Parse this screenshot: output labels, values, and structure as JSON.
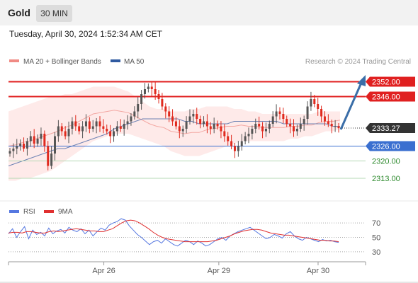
{
  "header": {
    "symbol": "Gold",
    "timeframe": "30 MIN"
  },
  "timestamp": "Tuesday, April 30, 2024 1:52:34 AM CET",
  "legend": {
    "items": [
      {
        "label": "MA 20 + Bollinger Bands",
        "color": "#f08a84"
      },
      {
        "label": "MA 50",
        "color": "#2f5aa0"
      }
    ],
    "credit": "Research © 2024 Trading Central"
  },
  "rsi_legend": {
    "items": [
      {
        "label": "RSI",
        "color": "#5577e0"
      },
      {
        "label": "9MA",
        "color": "#e03030"
      }
    ]
  },
  "colors": {
    "resistance": "#e02020",
    "support": "#3a6fd0",
    "support_weak": "#b4d8b4",
    "support_text": "#2d8a2d",
    "current": "#333333",
    "candle_up": "#555555",
    "candle_down": "#e02a1e",
    "band_fill": "#fde3e1",
    "arrow": "#3a6ea8"
  },
  "chart_data": [
    {
      "type": "candlestick",
      "title": "Gold",
      "ylim": [
        2305,
        2357
      ],
      "x_ticks": [
        {
          "label": "Apr 26",
          "pos": 0.267
        },
        {
          "label": "Apr 29",
          "pos": 0.589
        },
        {
          "label": "Apr 30",
          "pos": 0.867
        }
      ],
      "price_levels": [
        {
          "value": 2352.0,
          "label": "2352.00",
          "kind": "resistance"
        },
        {
          "value": 2346.0,
          "label": "2346.00",
          "kind": "resistance"
        },
        {
          "value": 2333.27,
          "label": "2333.27",
          "kind": "current"
        },
        {
          "value": 2326.0,
          "label": "2326.00",
          "kind": "support"
        },
        {
          "value": 2320.0,
          "label": "2320.00",
          "kind": "support-text"
        },
        {
          "value": 2313.0,
          "label": "2313.00",
          "kind": "support-text"
        }
      ],
      "close_series": [
        2324,
        2325,
        2326,
        2327,
        2325,
        2328,
        2330,
        2327,
        2329,
        2331,
        2326,
        2318,
        2323,
        2330,
        2334,
        2332,
        2330,
        2333,
        2336,
        2334,
        2332,
        2334,
        2336,
        2333,
        2334,
        2336,
        2334,
        2333,
        2332,
        2330,
        2332,
        2334,
        2333,
        2335,
        2336,
        2338,
        2340,
        2343,
        2347,
        2349,
        2350,
        2349,
        2347,
        2345,
        2342,
        2340,
        2338,
        2336,
        2334,
        2332,
        2333,
        2336,
        2338,
        2339,
        2337,
        2335,
        2336,
        2334,
        2333,
        2335,
        2334,
        2332,
        2330,
        2328,
        2326,
        2324,
        2326,
        2328,
        2330,
        2331,
        2333,
        2335,
        2334,
        2332,
        2333,
        2335,
        2338,
        2340,
        2339,
        2337,
        2335,
        2334,
        2332,
        2333,
        2335,
        2337,
        2342,
        2345,
        2343,
        2341,
        2338,
        2336,
        2335,
        2334,
        2334,
        2333.27
      ],
      "bb_upper": [
        2340,
        2341,
        2342,
        2343,
        2344,
        2345,
        2346,
        2346,
        2347,
        2347,
        2348,
        2349,
        2350,
        2350,
        2350,
        2350,
        2349,
        2348,
        2346,
        2344,
        2342,
        2341,
        2341,
        2340,
        2340,
        2340,
        2341,
        2341,
        2342,
        2342,
        2342,
        2342,
        2341,
        2341,
        2340,
        2340,
        2339,
        2339,
        2339,
        2339,
        2339,
        2339,
        2339,
        2339,
        2340,
        2340,
        2340,
        2340
      ],
      "bb_lower": [
        2312,
        2312,
        2313,
        2313,
        2314,
        2315,
        2316,
        2318,
        2320,
        2322,
        2324,
        2326,
        2328,
        2329,
        2330,
        2331,
        2331,
        2331,
        2330,
        2329,
        2328,
        2327,
        2326,
        2324,
        2323,
        2322,
        2322,
        2322,
        2323,
        2324,
        2325,
        2326,
        2327,
        2328,
        2328,
        2328,
        2328,
        2328,
        2328,
        2328,
        2329,
        2329,
        2330,
        2330,
        2331,
        2332,
        2332,
        2333
      ],
      "ma50": [
        2318,
        2319,
        2320,
        2321,
        2322,
        2323,
        2324,
        2325,
        2325,
        2326,
        2327,
        2328,
        2329,
        2330,
        2331,
        2333,
        2334,
        2335,
        2336,
        2337,
        2337,
        2337,
        2337,
        2337,
        2337,
        2336,
        2336,
        2335,
        2335,
        2335,
        2335,
        2335,
        2336,
        2336,
        2336,
        2336,
        2336,
        2336,
        2336,
        2335,
        2335,
        2335,
        2335,
        2335,
        2335,
        2335,
        2334,
        2334
      ]
    },
    {
      "type": "line",
      "title": "RSI",
      "ylim": [
        20,
        80
      ],
      "y_ticks": [
        70,
        50,
        30
      ],
      "series": [
        {
          "name": "RSI",
          "values": [
            55,
            62,
            50,
            58,
            65,
            48,
            60,
            54,
            57,
            52,
            63,
            55,
            59,
            61,
            56,
            64,
            60,
            58,
            62,
            55,
            60,
            52,
            58,
            63,
            60,
            67,
            70,
            72,
            76,
            74,
            66,
            60,
            54,
            50,
            45,
            40,
            44,
            46,
            42,
            48,
            44,
            40,
            38,
            42,
            46,
            44,
            40,
            45,
            42,
            38,
            40,
            44,
            48,
            50,
            46,
            52,
            55,
            58,
            60,
            62,
            64,
            60,
            56,
            52,
            48,
            50,
            54,
            52,
            49,
            55,
            58,
            52,
            48,
            46,
            50,
            48,
            46,
            44,
            47,
            45,
            46,
            44,
            43
          ]
        },
        {
          "name": "9MA",
          "values": [
            56,
            57,
            57,
            56,
            58,
            58,
            57,
            56,
            56,
            58,
            59,
            58,
            59,
            60,
            61,
            62,
            61,
            60,
            59,
            59,
            58,
            58,
            60,
            62,
            66,
            70,
            73,
            74,
            73,
            70,
            66,
            62,
            57,
            53,
            50,
            48,
            47,
            46,
            45,
            44,
            44,
            44,
            44,
            44,
            44,
            45,
            46,
            48,
            50,
            52,
            55,
            57,
            59,
            60,
            61,
            61,
            60,
            58,
            56,
            55,
            54,
            53,
            53,
            52,
            51,
            50,
            49,
            48,
            47,
            46,
            46,
            45,
            45,
            44
          ]
        }
      ]
    }
  ]
}
